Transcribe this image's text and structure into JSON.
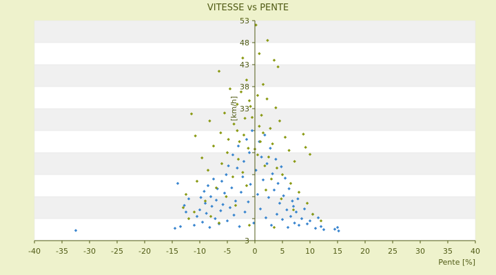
{
  "chart_data": {
    "type": "scatter",
    "title": "VITESSE vs PENTE",
    "xlabel": "Pente [%]",
    "ylabel": "[km/h]",
    "xlim": [
      -40,
      40
    ],
    "ylim": [
      3,
      53
    ],
    "x_ticks": [
      -40,
      -35,
      -30,
      -25,
      -20,
      -15,
      -10,
      -5,
      0,
      5,
      10,
      15,
      20,
      25,
      30,
      35,
      40
    ],
    "y_ticks": [
      3,
      8,
      13,
      18,
      23,
      28,
      33,
      38,
      43,
      48,
      53
    ],
    "y_tick_labels": [
      "3",
      "",
      "",
      "",
      "",
      "",
      "33",
      "38",
      "43",
      "48",
      "53"
    ],
    "grid": "horizontal-bands",
    "series": [
      {
        "color": "#3a86cf",
        "marker": "diamond",
        "points": [
          [
            -32.5,
            5.3
          ],
          [
            -14.5,
            5.8
          ],
          [
            -13.5,
            6.2
          ],
          [
            -14,
            16.0
          ],
          [
            -12.5,
            9.5
          ],
          [
            -12.8,
            11.0
          ],
          [
            -12,
            12.5
          ],
          [
            -11,
            6.5
          ],
          [
            -10.5,
            8.5
          ],
          [
            -10,
            10.0
          ],
          [
            -9.8,
            12.8
          ],
          [
            -9.5,
            7.2
          ],
          [
            -9.2,
            14.2
          ],
          [
            -9,
            11.5
          ],
          [
            -8.8,
            9.2
          ],
          [
            -8.5,
            15.5
          ],
          [
            -8.2,
            6.0
          ],
          [
            -8,
            13.0
          ],
          [
            -7.8,
            10.8
          ],
          [
            -7.5,
            17.0
          ],
          [
            -7.2,
            8.0
          ],
          [
            -7,
            12.2
          ],
          [
            -6.8,
            14.8
          ],
          [
            -6.5,
            6.8
          ],
          [
            -6.2,
            9.8
          ],
          [
            -6,
            16.5
          ],
          [
            -5.8,
            11.2
          ],
          [
            -5.5,
            13.8
          ],
          [
            -5.2,
            18.0
          ],
          [
            -5,
            7.5
          ],
          [
            -4.8,
            20.0
          ],
          [
            -4.5,
            10.5
          ],
          [
            -4.2,
            15.0
          ],
          [
            -4,
            22.5
          ],
          [
            -3.8,
            8.8
          ],
          [
            -3.5,
            12.0
          ],
          [
            -3.2,
            19.5
          ],
          [
            -3,
            24.5
          ],
          [
            -2.8,
            6.2
          ],
          [
            -2.5,
            14.0
          ],
          [
            -2.2,
            17.5
          ],
          [
            -2,
            21.0
          ],
          [
            -1.8,
            9.5
          ],
          [
            -1.5,
            26.0
          ],
          [
            -1.2,
            11.8
          ],
          [
            -1,
            23.0
          ],
          [
            -0.8,
            15.8
          ],
          [
            -0.5,
            28.0
          ],
          [
            -0.2,
            7.0
          ],
          [
            0.2,
            19.0
          ],
          [
            0.5,
            13.5
          ],
          [
            0.8,
            25.5
          ],
          [
            1,
            10.2
          ],
          [
            1.2,
            22.0
          ],
          [
            1.5,
            16.8
          ],
          [
            1.8,
            27.0
          ],
          [
            2,
            8.2
          ],
          [
            2.2,
            20.5
          ],
          [
            2.5,
            12.8
          ],
          [
            2.8,
            24.0
          ],
          [
            3,
            6.5
          ],
          [
            3.2,
            18.2
          ],
          [
            3.5,
            14.5
          ],
          [
            3.8,
            21.5
          ],
          [
            4,
            9.0
          ],
          [
            4.2,
            16.0
          ],
          [
            4.5,
            11.5
          ],
          [
            4.8,
            19.8
          ],
          [
            5,
            7.8
          ],
          [
            5.2,
            13.2
          ],
          [
            5.5,
            17.2
          ],
          [
            5.8,
            10.0
          ],
          [
            6,
            6.0
          ],
          [
            6.2,
            14.8
          ],
          [
            6.5,
            8.5
          ],
          [
            6.8,
            12.0
          ],
          [
            7,
            10.8
          ],
          [
            7.2,
            7.0
          ],
          [
            7.5,
            9.5
          ],
          [
            7.8,
            12.5
          ],
          [
            8,
            6.5
          ],
          [
            8.5,
            8.0
          ],
          [
            9,
            10.2
          ],
          [
            9.5,
            6.8
          ],
          [
            10,
            7.5
          ],
          [
            10.5,
            9.0
          ],
          [
            11,
            5.8
          ],
          [
            11.5,
            8.2
          ],
          [
            12,
            6.2
          ],
          [
            12.5,
            5.5
          ],
          [
            14.5,
            5.6
          ],
          [
            15,
            6.0
          ],
          [
            15.2,
            5.2
          ]
        ]
      },
      {
        "color": "#8a9a14",
        "marker": "diamond",
        "points": [
          [
            0.2,
            52.0
          ],
          [
            2.3,
            48.5
          ],
          [
            0.8,
            45.5
          ],
          [
            -2.2,
            44.5
          ],
          [
            3.5,
            44.0
          ],
          [
            4.2,
            42.5
          ],
          [
            -6.5,
            41.5
          ],
          [
            -1.5,
            39.5
          ],
          [
            1.5,
            38.5
          ],
          [
            -4.5,
            37.5
          ],
          [
            -2.5,
            36.8
          ],
          [
            0.5,
            36.0
          ],
          [
            2.2,
            35.2
          ],
          [
            -3.2,
            34.0
          ],
          [
            -0.8,
            33.5
          ],
          [
            3.8,
            33.2
          ],
          [
            -5.5,
            32.0
          ],
          [
            1.2,
            31.5
          ],
          [
            -1.8,
            30.8
          ],
          [
            4.5,
            30.2
          ],
          [
            -3.8,
            29.5
          ],
          [
            0.8,
            29.0
          ],
          [
            2.8,
            28.5
          ],
          [
            -6.2,
            27.5
          ],
          [
            -2.0,
            27.0
          ],
          [
            5.5,
            26.5
          ],
          [
            -4.8,
            26.0
          ],
          [
            1.0,
            25.5
          ],
          [
            3.2,
            25.0
          ],
          [
            -7.5,
            24.5
          ],
          [
            -1.2,
            24.0
          ],
          [
            6.2,
            23.5
          ],
          [
            -5.0,
            23.0
          ],
          [
            0.5,
            22.5
          ],
          [
            2.5,
            22.0
          ],
          [
            -3.0,
            21.5
          ],
          [
            7.2,
            21.0
          ],
          [
            -6.0,
            20.5
          ],
          [
            1.8,
            20.0
          ],
          [
            4.0,
            19.5
          ],
          [
            -8.5,
            19.0
          ],
          [
            -2.2,
            18.5
          ],
          [
            5.0,
            18.0
          ],
          [
            -4.0,
            17.5
          ],
          [
            3.0,
            17.0
          ],
          [
            -10.5,
            16.5
          ],
          [
            6.5,
            16.0
          ],
          [
            -1.5,
            15.5
          ],
          [
            -7.0,
            15.0
          ],
          [
            2.0,
            14.5
          ],
          [
            8.0,
            14.0
          ],
          [
            -12.5,
            13.5
          ],
          [
            -5.2,
            13.0
          ],
          [
            4.8,
            12.5
          ],
          [
            -9.0,
            12.0
          ],
          [
            9.5,
            11.5
          ],
          [
            -3.5,
            11.0
          ],
          [
            -13.0,
            10.5
          ],
          [
            7.0,
            10.0
          ],
          [
            -11.0,
            9.5
          ],
          [
            10.5,
            9.0
          ],
          [
            -8.0,
            8.5
          ],
          [
            -12.0,
            8.0
          ],
          [
            12.0,
            7.5
          ],
          [
            -6.5,
            7.0
          ],
          [
            -1.0,
            6.5
          ],
          [
            3.5,
            6.0
          ],
          [
            -3.2,
            28.0
          ],
          [
            -0.5,
            31.0
          ],
          [
            1.5,
            27.5
          ],
          [
            -2.8,
            25.5
          ],
          [
            0.0,
            23.8
          ],
          [
            -8.2,
            30.2
          ],
          [
            -10.8,
            26.8
          ],
          [
            -11.5,
            31.8
          ],
          [
            8.8,
            27.2
          ],
          [
            9.2,
            24.2
          ],
          [
            -9.6,
            21.8
          ],
          [
            10.0,
            22.6
          ],
          [
            -1.0,
            34.8
          ]
        ]
      }
    ]
  }
}
